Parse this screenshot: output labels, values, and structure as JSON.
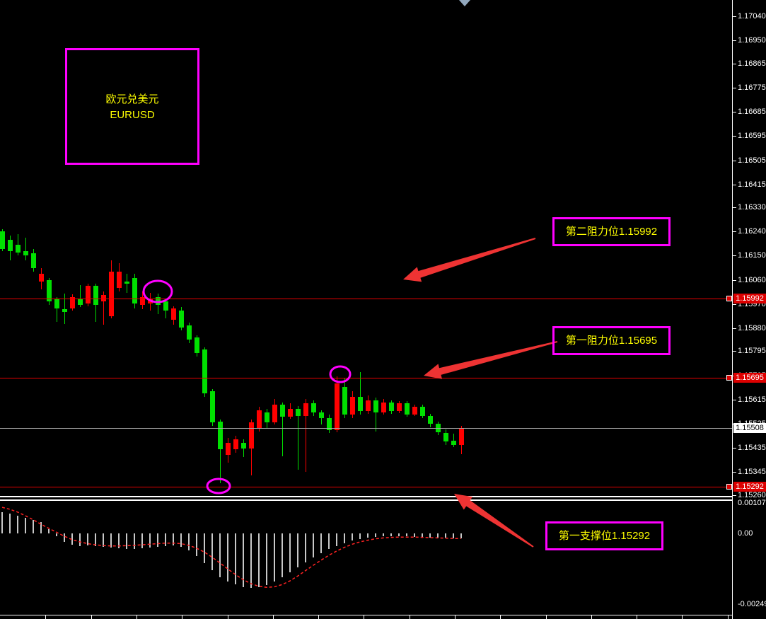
{
  "chart": {
    "symbol_label": {
      "line1": "欧元兑美元",
      "line2": "EURUSD"
    },
    "annotations": {
      "resistance2": "第二阻力位1.15992",
      "resistance1": "第一阻力位1.15695",
      "support1": "第一支撑位1.15292"
    },
    "badges": {
      "r2": "1.15992",
      "r1": "1.15695",
      "current": "1.15508",
      "s1": "1.15292"
    },
    "price_axis_labels": [
      "1.17040",
      "1.16950",
      "1.16865",
      "1.16775",
      "1.16685",
      "1.16595",
      "1.16505",
      "1.16415",
      "1.16330",
      "1.16240",
      "1.16150",
      "1.16060",
      "1.15970",
      "1.15880",
      "1.15795",
      "1.15705",
      "1.15615",
      "1.15525",
      "1.15435",
      "1.15345",
      "1.15260"
    ],
    "indicator_axis_labels": {
      "max": "0.001074",
      "zero": "0.00",
      "min": "-0.002494"
    },
    "colors": {
      "background": "#000000",
      "bull_candle": "#ff0000",
      "bear_candle": "#00e000",
      "level_line": "#e60000",
      "current_price_line": "#a8a8a8",
      "badge_bg": "#dd0000",
      "badge_text": "#ffffff",
      "axis_text": "#ffffff",
      "annotation_border": "#ff00ff",
      "annotation_text": "#ffff00",
      "histogram_bar": "#c8c8c8",
      "signal_line": "#ff2222",
      "arrow": "#ee3333",
      "shift_marker": "#92a8bd"
    }
  },
  "chart_data": {
    "type": "candlestick",
    "symbol": "EURUSD",
    "title": "欧元兑美元 EURUSD",
    "levels": {
      "resistance2": 1.15992,
      "resistance1": 1.15695,
      "current_bid": 1.15508,
      "support1": 1.15292
    },
    "price_axis_ticks": [
      1.1704,
      1.1695,
      1.16865,
      1.16775,
      1.16685,
      1.16595,
      1.16505,
      1.16415,
      1.1633,
      1.1624,
      1.1615,
      1.1606,
      1.1597,
      1.1588,
      1.15795,
      1.15705,
      1.15615,
      1.15525,
      1.15435,
      1.15345,
      1.1526
    ],
    "candles_ohlc": [
      [
        1.1624,
        1.16248,
        1.16166,
        1.16176
      ],
      [
        1.16208,
        1.16226,
        1.16134,
        1.16166
      ],
      [
        1.1619,
        1.16229,
        1.1615,
        1.16161
      ],
      [
        1.16168,
        1.16216,
        1.16134,
        1.1615
      ],
      [
        1.1616,
        1.16174,
        1.1609,
        1.16103
      ],
      [
        1.16055,
        1.16103,
        1.16024,
        1.16084
      ],
      [
        1.16058,
        1.16068,
        1.15966,
        1.15979
      ],
      [
        1.15989,
        1.15997,
        1.15905,
        1.15953
      ],
      [
        1.1595,
        1.1601,
        1.15897,
        1.1594
      ],
      [
        1.15953,
        1.16006,
        1.15945,
        1.15995
      ],
      [
        1.15992,
        1.16042,
        1.15958,
        1.15966
      ],
      [
        1.15971,
        1.16045,
        1.15963,
        1.16037
      ],
      [
        1.16037,
        1.16045,
        1.15905,
        1.15966
      ],
      [
        1.15979,
        1.16016,
        1.15892,
        1.16005
      ],
      [
        1.15924,
        1.16134,
        1.15918,
        1.1609
      ],
      [
        1.16029,
        1.16121,
        1.16016,
        1.1609
      ],
      [
        1.16053,
        1.16082,
        1.16011,
        1.16045
      ],
      [
        1.16066,
        1.16082,
        1.15955,
        1.15971
      ],
      [
        1.15966,
        1.16018,
        1.1595,
        1.15997
      ],
      [
        1.15971,
        1.16013,
        1.15945,
        1.15992
      ],
      [
        1.15995,
        1.16008,
        1.15934,
        1.15966
      ],
      [
        1.15979,
        1.15992,
        1.15918,
        1.15945
      ],
      [
        1.15913,
        1.15963,
        1.15892,
        1.15953
      ],
      [
        1.15945,
        1.15958,
        1.15871,
        1.15882
      ],
      [
        1.15892,
        1.15902,
        1.15826,
        1.15837
      ],
      [
        1.15845,
        1.15855,
        1.15774,
        1.15787
      ],
      [
        1.158,
        1.15808,
        1.15626,
        1.15637
      ],
      [
        1.15645,
        1.15653,
        1.15518,
        1.15531
      ],
      [
        1.15534,
        1.15542,
        1.15305,
        1.15429
      ],
      [
        1.15408,
        1.15471,
        1.15379,
        1.15455
      ],
      [
        1.15429,
        1.15481,
        1.15416,
        1.15466
      ],
      [
        1.15455,
        1.15468,
        1.154,
        1.15432
      ],
      [
        1.15432,
        1.15542,
        1.15334,
        1.15531
      ],
      [
        1.1551,
        1.15587,
        1.15497,
        1.15576
      ],
      [
        1.15568,
        1.15581,
        1.1551,
        1.15529
      ],
      [
        1.15529,
        1.15618,
        1.15521,
        1.15595
      ],
      [
        1.15595,
        1.15605,
        1.15405,
        1.1555
      ],
      [
        1.1555,
        1.156,
        1.15542,
        1.15581
      ],
      [
        1.15581,
        1.15592,
        1.15353,
        1.15553
      ],
      [
        1.15553,
        1.15616,
        1.15345,
        1.15602
      ],
      [
        1.15602,
        1.15613,
        1.15555,
        1.15566
      ],
      [
        1.15566,
        1.15576,
        1.15521,
        1.15545
      ],
      [
        1.15545,
        1.1556,
        1.1549,
        1.155
      ],
      [
        1.155,
        1.157,
        1.15492,
        1.15676
      ],
      [
        1.15663,
        1.15697,
        1.15547,
        1.15558
      ],
      [
        1.15558,
        1.15645,
        1.15547,
        1.15624
      ],
      [
        1.15624,
        1.15718,
        1.1556,
        1.15571
      ],
      [
        1.15571,
        1.15629,
        1.15563,
        1.15613
      ],
      [
        1.15613,
        1.15621,
        1.15497,
        1.15566
      ],
      [
        1.15566,
        1.15618,
        1.15558,
        1.15605
      ],
      [
        1.15605,
        1.15613,
        1.15563,
        1.15571
      ],
      [
        1.15571,
        1.1561,
        1.15565,
        1.156
      ],
      [
        1.156,
        1.15608,
        1.1555,
        1.1556
      ],
      [
        1.1556,
        1.15597,
        1.15553,
        1.15589
      ],
      [
        1.15589,
        1.15595,
        1.15545,
        1.15555
      ],
      [
        1.15555,
        1.15563,
        1.15513,
        1.15524
      ],
      [
        1.15524,
        1.15534,
        1.15482,
        1.15492
      ],
      [
        1.15492,
        1.15503,
        1.15447,
        1.1546
      ],
      [
        1.15463,
        1.15489,
        1.15437,
        1.15447
      ],
      [
        1.15447,
        1.15516,
        1.15413,
        1.15508
      ]
    ],
    "indicator": {
      "type": "histogram_with_signal",
      "axis": {
        "max": 0.001074,
        "zero": 0.0,
        "min": -0.002494
      },
      "histogram": [
        0.00075,
        0.0007,
        0.00062,
        0.00055,
        0.00048,
        0.0004,
        0.00015,
        -0.0001,
        -0.0003,
        -0.0004,
        -0.00045,
        -0.00042,
        -0.00045,
        -0.00048,
        -0.0005,
        -0.00052,
        -0.00055,
        -0.00055,
        -0.00053,
        -0.0005,
        -0.00048,
        -0.00045,
        -0.00042,
        -0.00048,
        -0.0006,
        -0.0008,
        -0.00105,
        -0.0013,
        -0.00155,
        -0.0017,
        -0.0018,
        -0.00188,
        -0.00192,
        -0.0019,
        -0.00182,
        -0.0017,
        -0.00155,
        -0.00138,
        -0.0012,
        -0.00102,
        -0.00085,
        -0.0007,
        -0.00056,
        -0.00044,
        -0.00034,
        -0.00026,
        -0.0002,
        -0.00016,
        -0.00013,
        -0.00011,
        -0.0001,
        -0.0001,
        -0.00011,
        -0.00012,
        -0.00013,
        -0.00014,
        -0.00015,
        -0.00016,
        -0.00017,
        -0.00018
      ],
      "signal": [
        0.00092,
        0.00085,
        0.00075,
        0.00062,
        0.00048,
        0.00032,
        0.00018,
        4e-05,
        -0.0001,
        -0.00022,
        -0.0003,
        -0.00036,
        -0.0004,
        -0.00043,
        -0.00044,
        -0.00044,
        -0.00043,
        -0.00042,
        -0.0004,
        -0.00038,
        -0.00036,
        -0.00034,
        -0.00034,
        -0.00036,
        -0.00042,
        -0.00052,
        -0.00066,
        -0.00084,
        -0.00104,
        -0.00125,
        -0.00145,
        -0.00163,
        -0.00177,
        -0.00186,
        -0.0019,
        -0.00188,
        -0.0018,
        -0.00167,
        -0.0015,
        -0.00131,
        -0.00112,
        -0.00094,
        -0.00077,
        -0.00062,
        -0.00049,
        -0.00038,
        -0.0003,
        -0.00024,
        -0.00019,
        -0.00016,
        -0.00014,
        -0.00013,
        -0.00013,
        -0.00013,
        -0.00014,
        -0.00015,
        -0.00016,
        -0.00017,
        -0.00018,
        -0.00018
      ]
    },
    "highlight_ellipses": [
      "touch-of-resistance2",
      "touch-of-support1",
      "touch-of-resistance1"
    ],
    "legend_position": "none",
    "grid": false
  }
}
